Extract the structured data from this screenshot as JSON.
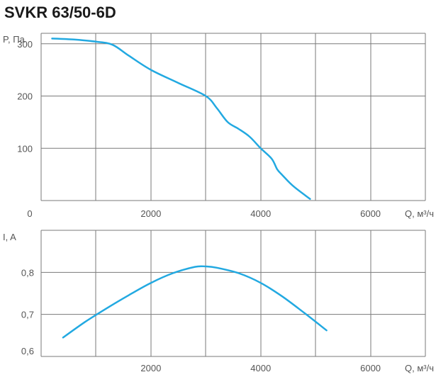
{
  "title": "SVKR 63/50-6D",
  "colors": {
    "curve": "#22a9e1",
    "grid": "#7a7a7a",
    "text": "#555555"
  },
  "chart_data": [
    {
      "type": "line",
      "ylabel": "P, Па",
      "xlabel": "Q, м³/ч",
      "xlim": [
        0,
        7000
      ],
      "ylim": [
        0,
        320
      ],
      "grid": true,
      "x_ticks": [
        2000,
        4000,
        6000
      ],
      "y_ticks": [
        100,
        200,
        300
      ],
      "origin_label": "0",
      "series": [
        {
          "x": [
            200,
            600,
            1000,
            1300,
            1600,
            2000,
            2500,
            3000,
            3200,
            3400,
            3600,
            3800,
            4000,
            4200,
            4300,
            4400,
            4600,
            4900
          ],
          "y": [
            310,
            308,
            304,
            298,
            277,
            250,
            225,
            200,
            177,
            150,
            137,
            122,
            100,
            80,
            60,
            48,
            27,
            3
          ]
        }
      ]
    },
    {
      "type": "line",
      "ylabel": "I, A",
      "xlabel": "Q, м³/ч",
      "xlim": [
        0,
        7000
      ],
      "ylim": [
        0.6,
        0.9
      ],
      "grid": true,
      "x_ticks": [
        2000,
        4000,
        6000
      ],
      "y_ticks": [
        0.6,
        0.7,
        0.8
      ],
      "y_tick_labels": [
        "0,6",
        "0,7",
        "0,8"
      ],
      "series": [
        {
          "x": [
            400,
            800,
            1200,
            1600,
            2000,
            2400,
            2800,
            3000,
            3200,
            3600,
            4000,
            4400,
            4800,
            5200
          ],
          "y": [
            0.645,
            0.682,
            0.715,
            0.746,
            0.775,
            0.798,
            0.813,
            0.814,
            0.811,
            0.798,
            0.775,
            0.742,
            0.703,
            0.662
          ]
        }
      ]
    }
  ]
}
